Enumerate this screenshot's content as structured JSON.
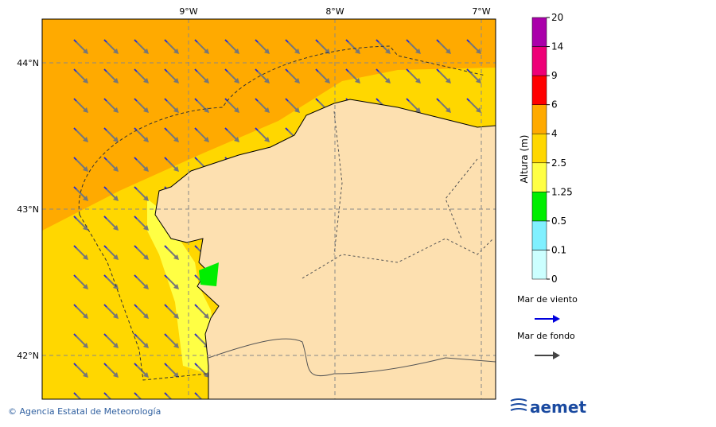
{
  "map": {
    "lon_ticks": [
      {
        "value": -9,
        "label": "9°W"
      },
      {
        "value": -8,
        "label": "8°W"
      },
      {
        "value": -7,
        "label": "7°W"
      }
    ],
    "lat_ticks": [
      {
        "value": 44,
        "label": "44°N"
      },
      {
        "value": 43,
        "label": "43°N"
      },
      {
        "value": 42,
        "label": "42°N"
      }
    ],
    "colorbar": {
      "label": "Altura (m)",
      "ticks": [
        0,
        0.1,
        0.5,
        1.25,
        2.5,
        4,
        6,
        9,
        14,
        20
      ],
      "colors": [
        "#ccffff",
        "#80f0ff",
        "#00ee00",
        "#ffff44",
        "#ffd700",
        "#ffaa00",
        "#ff0000",
        "#ee0077",
        "#aa00aa"
      ]
    },
    "legend": [
      {
        "name": "Mar de viento",
        "color": "#0000dd"
      },
      {
        "name": "Mar de fondo",
        "color": "#444444"
      }
    ]
  },
  "footer": {
    "credit": "© Agencia Estatal de Meteorología",
    "logo": "aemet"
  }
}
